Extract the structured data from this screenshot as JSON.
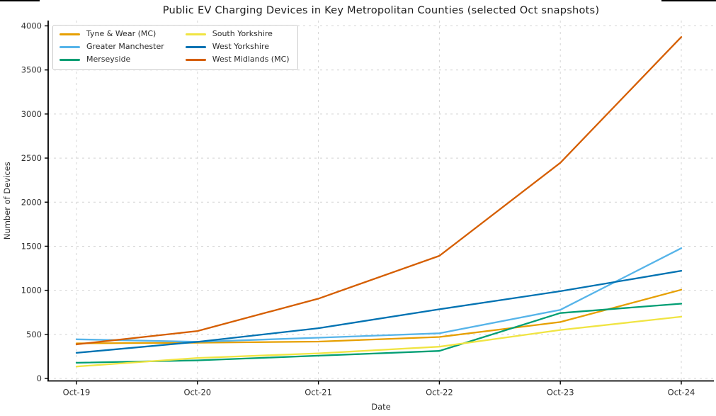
{
  "title": "Public EV Charging Devices in Key Metropolitan Counties (selected Oct snapshots)",
  "chart_data": {
    "type": "line",
    "categories": [
      "Oct-19",
      "Oct-20",
      "Oct-21",
      "Oct-22",
      "Oct-23",
      "Oct-24"
    ],
    "series": [
      {
        "name": "Tyne & Wear (MC)",
        "color": "#E69F00",
        "values": [
          398,
          405,
          418,
          470,
          640,
          1007
        ]
      },
      {
        "name": "Greater Manchester",
        "color": "#56B4E9",
        "values": [
          444,
          416,
          462,
          512,
          778,
          1478
        ]
      },
      {
        "name": "Merseyside",
        "color": "#009E73",
        "values": [
          178,
          205,
          258,
          312,
          742,
          848
        ]
      },
      {
        "name": "South Yorkshire",
        "color": "#F0E442",
        "values": [
          135,
          232,
          285,
          360,
          550,
          700
        ]
      },
      {
        "name": "West Yorkshire",
        "color": "#0072B2",
        "values": [
          290,
          415,
          570,
          785,
          990,
          1221
        ]
      },
      {
        "name": "West Midlands (MC)",
        "color": "#D55E00",
        "values": [
          387,
          538,
          905,
          1391,
          2447,
          3874
        ]
      }
    ],
    "xlabel": "Date",
    "ylabel": "Number of Devices",
    "ylim": [
      0,
      4000
    ],
    "yticks": [
      0,
      500,
      1000,
      1500,
      2000,
      2500,
      3000,
      3500,
      4000
    ],
    "grid": true,
    "grid_style": "dashed",
    "legend_position": "upper-left",
    "legend_columns": 2,
    "axis_color": "#000000",
    "gridline_color": "#d4d4d4",
    "tick_label_color": "#303030"
  }
}
